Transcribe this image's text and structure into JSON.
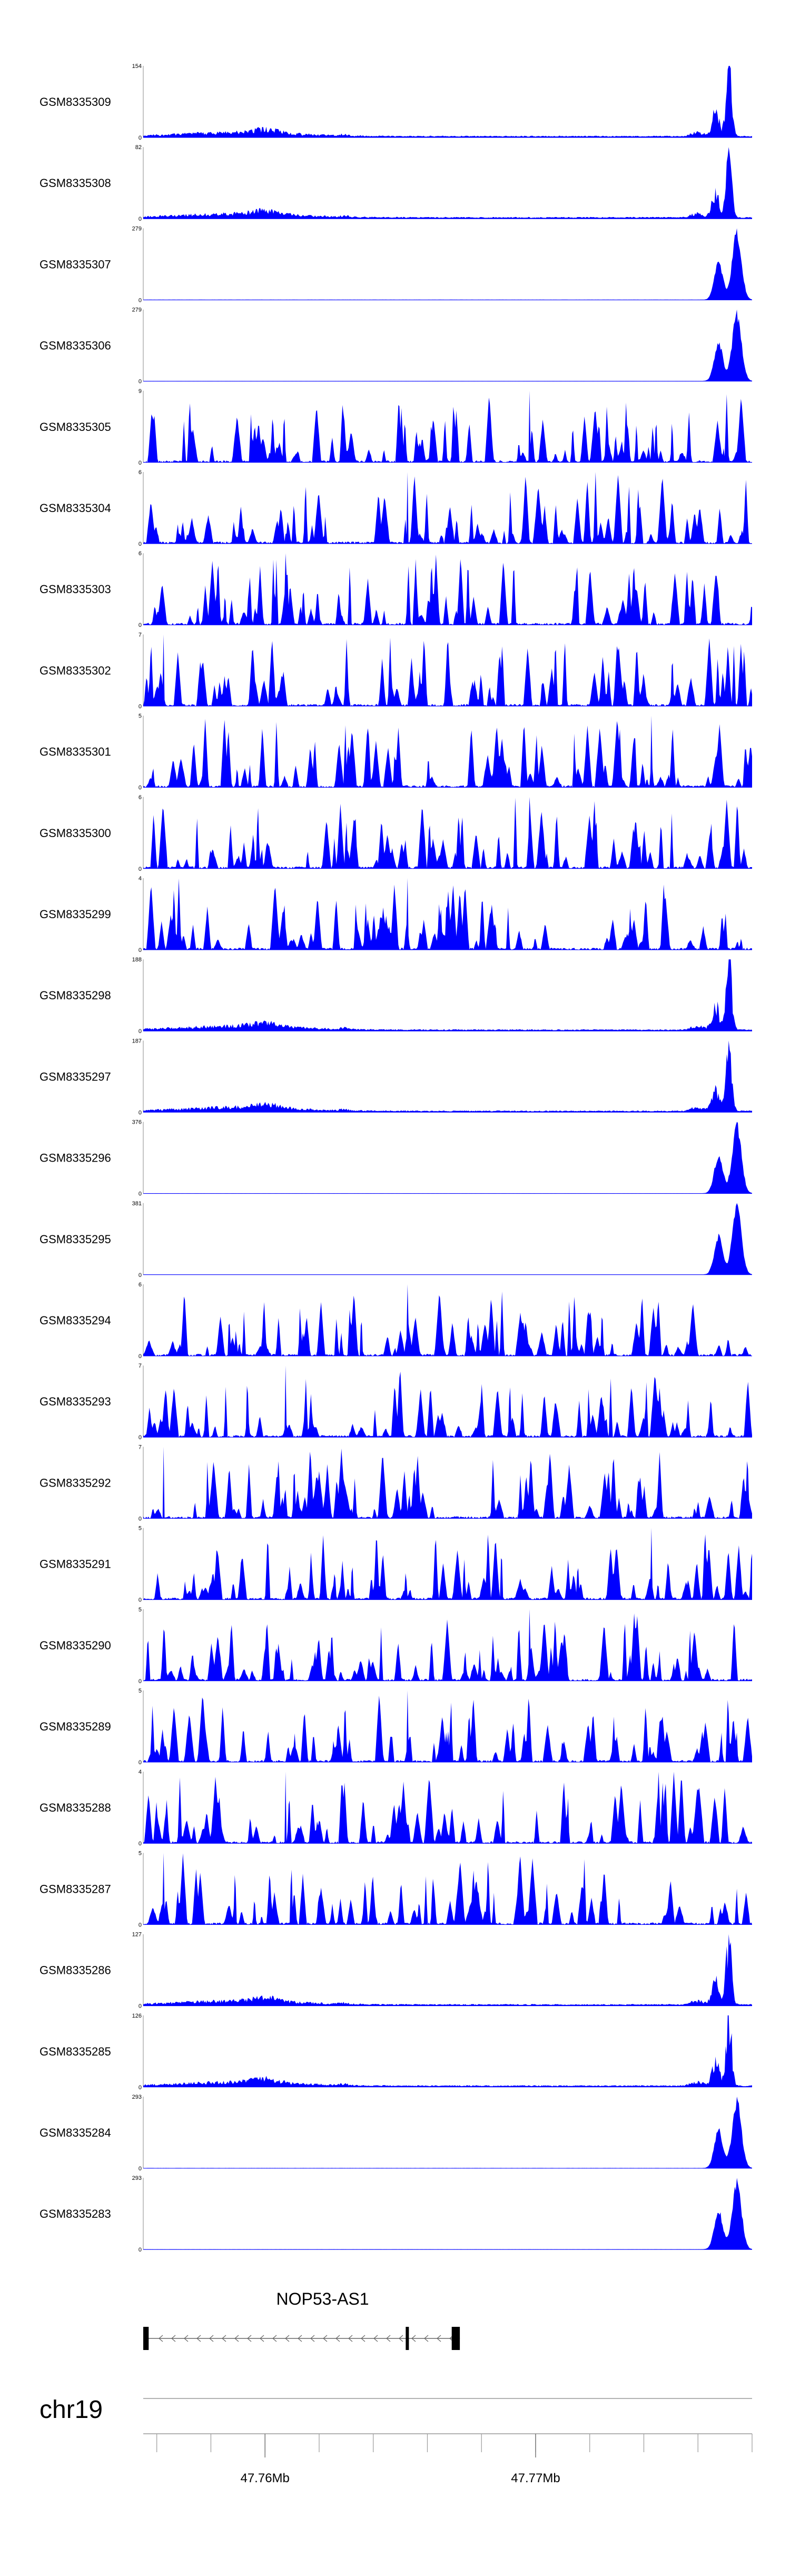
{
  "chart_data": {
    "type": "area",
    "title": "",
    "chromosome": "chr19",
    "x_axis": {
      "unit": "Mb",
      "range": [
        47.7555,
        47.778
      ],
      "labeled_ticks": [
        {
          "value": 47.76,
          "label": "47.76Mb"
        },
        {
          "value": 47.77,
          "label": "47.77Mb"
        }
      ],
      "minor_tick_step": 0.002
    },
    "gene_track": {
      "name": "NOP53-AS1",
      "strand": "-",
      "start": 47.7555,
      "end": 47.7672,
      "exons": [
        [
          47.7555,
          47.7557
        ],
        [
          47.7652,
          47.7653
        ],
        [
          47.7669,
          47.7672
        ]
      ]
    },
    "series": [
      {
        "name": "GSM8335309",
        "ymin": 0,
        "ymax": 154,
        "profile": "promoter_broad",
        "seed": 309,
        "color": "#0000ff"
      },
      {
        "name": "GSM8335308",
        "ymin": 0,
        "ymax": 82,
        "profile": "promoter_broad",
        "seed": 308,
        "color": "#0000ff"
      },
      {
        "name": "GSM8335307",
        "ymin": 0,
        "ymax": 279,
        "profile": "promoter_double",
        "seed": 307,
        "color": "#0000ff"
      },
      {
        "name": "GSM8335306",
        "ymin": 0,
        "ymax": 279,
        "profile": "promoter_double",
        "seed": 306,
        "color": "#0000ff"
      },
      {
        "name": "GSM8335305",
        "ymin": 0,
        "ymax": 9,
        "profile": "noise",
        "seed": 305,
        "color": "#0000ff"
      },
      {
        "name": "GSM8335304",
        "ymin": 0,
        "ymax": 6,
        "profile": "noise",
        "seed": 304,
        "color": "#0000ff"
      },
      {
        "name": "GSM8335303",
        "ymin": 0,
        "ymax": 6,
        "profile": "noise",
        "seed": 303,
        "color": "#0000ff"
      },
      {
        "name": "GSM8335302",
        "ymin": 0,
        "ymax": 7,
        "profile": "noise",
        "seed": 302,
        "color": "#0000ff"
      },
      {
        "name": "GSM8335301",
        "ymin": 0,
        "ymax": 5,
        "profile": "noise",
        "seed": 301,
        "color": "#0000ff"
      },
      {
        "name": "GSM8335300",
        "ymin": 0,
        "ymax": 6,
        "profile": "noise",
        "seed": 300,
        "color": "#0000ff"
      },
      {
        "name": "GSM8335299",
        "ymin": 0,
        "ymax": 4,
        "profile": "noise",
        "seed": 299,
        "color": "#0000ff"
      },
      {
        "name": "GSM8335298",
        "ymin": 0,
        "ymax": 188,
        "profile": "promoter_broad",
        "seed": 298,
        "color": "#0000ff"
      },
      {
        "name": "GSM8335297",
        "ymin": 0,
        "ymax": 187,
        "profile": "promoter_broad",
        "seed": 297,
        "color": "#0000ff"
      },
      {
        "name": "GSM8335296",
        "ymin": 0,
        "ymax": 376,
        "profile": "promoter_double",
        "seed": 296,
        "color": "#0000ff"
      },
      {
        "name": "GSM8335295",
        "ymin": 0,
        "ymax": 381,
        "profile": "promoter_double",
        "seed": 295,
        "color": "#0000ff"
      },
      {
        "name": "GSM8335294",
        "ymin": 0,
        "ymax": 6,
        "profile": "noise",
        "seed": 294,
        "color": "#0000ff"
      },
      {
        "name": "GSM8335293",
        "ymin": 0,
        "ymax": 7,
        "profile": "noise",
        "seed": 293,
        "color": "#0000ff"
      },
      {
        "name": "GSM8335292",
        "ymin": 0,
        "ymax": 7,
        "profile": "noise",
        "seed": 292,
        "color": "#0000ff"
      },
      {
        "name": "GSM8335291",
        "ymin": 0,
        "ymax": 5,
        "profile": "noise",
        "seed": 291,
        "color": "#0000ff"
      },
      {
        "name": "GSM8335290",
        "ymin": 0,
        "ymax": 5,
        "profile": "noise",
        "seed": 290,
        "color": "#0000ff"
      },
      {
        "name": "GSM8335289",
        "ymin": 0,
        "ymax": 5,
        "profile": "noise",
        "seed": 289,
        "color": "#0000ff"
      },
      {
        "name": "GSM8335288",
        "ymin": 0,
        "ymax": 4,
        "profile": "noise",
        "seed": 288,
        "color": "#0000ff"
      },
      {
        "name": "GSM8335287",
        "ymin": 0,
        "ymax": 5,
        "profile": "noise",
        "seed": 287,
        "color": "#0000ff"
      },
      {
        "name": "GSM8335286",
        "ymin": 0,
        "ymax": 127,
        "profile": "promoter_broad",
        "seed": 286,
        "color": "#0000ff"
      },
      {
        "name": "GSM8335285",
        "ymin": 0,
        "ymax": 126,
        "profile": "promoter_broad",
        "seed": 285,
        "color": "#0000ff"
      },
      {
        "name": "GSM8335284",
        "ymin": 0,
        "ymax": 293,
        "profile": "promoter_double",
        "seed": 284,
        "color": "#0000ff"
      },
      {
        "name": "GSM8335283",
        "ymin": 0,
        "ymax": 293,
        "profile": "promoter_double",
        "seed": 283,
        "color": "#0000ff"
      }
    ]
  }
}
